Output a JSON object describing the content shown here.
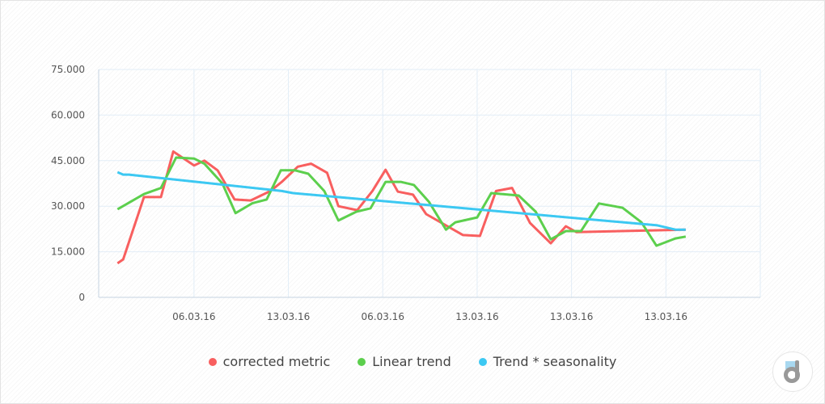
{
  "chart_data": {
    "type": "line",
    "title": "",
    "xlabel": "",
    "ylabel": "",
    "ylim": [
      0,
      75000
    ],
    "xlim": [
      -0.01,
      7.0
    ],
    "grid": true,
    "legend_position": "bottom",
    "yticks": [
      0,
      15000,
      30000,
      45000,
      60000,
      75000
    ],
    "ytick_labels": [
      "0",
      "15.000",
      "30.000",
      "45.000",
      "60.000",
      "75.000"
    ],
    "xticks": [
      1,
      2,
      3,
      4,
      5,
      6
    ],
    "xtick_labels": [
      "06.03.16",
      "13.03.16",
      "06.03.16",
      "13.03.16",
      "13.03.16",
      "13.03.16"
    ],
    "series": [
      {
        "name": "corrected metric",
        "color": "#f85f5f",
        "x": [
          0.19,
          0.25,
          0.47,
          0.65,
          0.78,
          1.0,
          1.11,
          1.25,
          1.43,
          1.6,
          1.81,
          1.93,
          2.1,
          2.24,
          2.41,
          2.53,
          2.73,
          2.89,
          3.03,
          3.16,
          3.32,
          3.46,
          3.85,
          4.03,
          4.2,
          4.37,
          4.56,
          4.78,
          4.94,
          5.05,
          6.21
        ],
        "y": [
          11200,
          12500,
          33000,
          33000,
          48000,
          43400,
          45000,
          41800,
          32200,
          31900,
          35000,
          38000,
          43000,
          44000,
          41000,
          30000,
          28700,
          35000,
          42000,
          34800,
          33800,
          27400,
          20500,
          20200,
          35000,
          36000,
          24500,
          17800,
          23400,
          21500,
          22300
        ]
      },
      {
        "name": "Linear trend",
        "color": "#5ccf4d",
        "x": [
          0.19,
          0.47,
          0.65,
          0.81,
          1.0,
          1.11,
          1.3,
          1.44,
          1.62,
          1.77,
          1.92,
          2.07,
          2.21,
          2.38,
          2.53,
          2.72,
          2.87,
          3.03,
          3.19,
          3.33,
          3.49,
          3.67,
          3.77,
          4.0,
          4.15,
          4.44,
          4.62,
          4.78,
          4.94,
          5.1,
          5.29,
          5.54,
          5.74,
          5.9,
          6.1,
          6.21
        ],
        "y": [
          29000,
          34000,
          36000,
          46000,
          45700,
          44000,
          37500,
          27700,
          31000,
          32200,
          41800,
          41800,
          40700,
          35000,
          25300,
          28200,
          29300,
          38000,
          38000,
          37000,
          31400,
          22300,
          24700,
          26300,
          34300,
          33500,
          28200,
          19100,
          21800,
          21800,
          30900,
          29500,
          24700,
          17000,
          19400,
          20000
        ]
      },
      {
        "name": "Trend * seasonality",
        "color": "#3cc8f2",
        "x": [
          0.19,
          0.25,
          0.31,
          1.93,
          2.05,
          5.91,
          6.1,
          6.21
        ],
        "y": [
          41200,
          40400,
          40400,
          35000,
          34300,
          23700,
          22300,
          22300
        ]
      }
    ]
  }
}
